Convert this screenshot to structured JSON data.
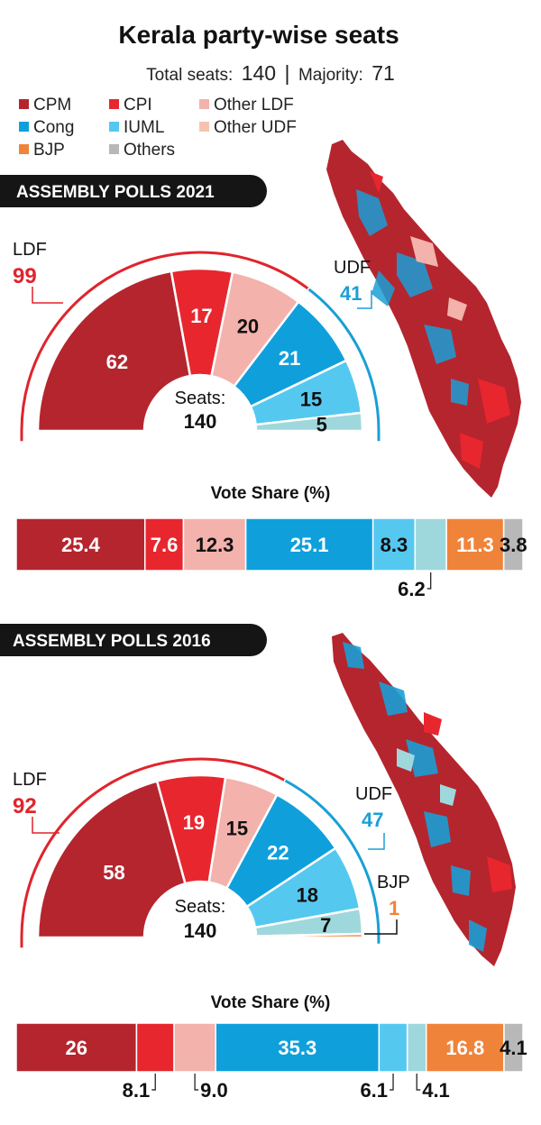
{
  "header": {
    "title": "Kerala party-wise seats",
    "total_label": "Total seats:",
    "total_value": "140",
    "separator": "|",
    "majority_label": "Majority:",
    "majority_value": "71"
  },
  "legend": [
    {
      "label": "CPM",
      "color": "#b5252e"
    },
    {
      "label": "CPI",
      "color": "#e8262e"
    },
    {
      "label": "Other LDF",
      "color": "#f3b2ac"
    },
    {
      "label": "Cong",
      "color": "#0fa0dc"
    },
    {
      "label": "IUML",
      "color": "#55c8f0"
    },
    {
      "label": "Other UDF",
      "color": "#f6c4ad"
    },
    {
      "label": "BJP",
      "color": "#f0833a"
    },
    {
      "label": "Others",
      "color": "#b8b8b8"
    }
  ],
  "colors": {
    "ldf": "#e0242c",
    "udf": "#1a9fd6",
    "bjp": "#f0833a",
    "badge_bg": "#151515",
    "badge_text": "#ffffff",
    "seat_other_udf": "#9fd8dc"
  },
  "chart_data": [
    {
      "type": "pie",
      "badge": "ASSEMBLY POLLS 2021",
      "center_label": "Seats:",
      "center_value": "140",
      "groups": [
        {
          "name": "LDF",
          "value": "99"
        },
        {
          "name": "UDF",
          "value": "41"
        }
      ],
      "slices": [
        {
          "party": "CPM",
          "value": 62,
          "color": "#b5252e"
        },
        {
          "party": "CPI",
          "value": 17,
          "color": "#e8262e"
        },
        {
          "party": "Other LDF",
          "value": 20,
          "color": "#f3b2ac"
        },
        {
          "party": "Cong",
          "value": 21,
          "color": "#0fa0dc"
        },
        {
          "party": "IUML",
          "value": 15,
          "color": "#55c8f0"
        },
        {
          "party": "Other UDF",
          "value": 5,
          "color": "#9fd8dc"
        }
      ],
      "vote_share": {
        "title": "Vote Share (%)",
        "segments": [
          {
            "party": "CPM",
            "value": 25.4,
            "label": "25.4",
            "color": "#b5252e"
          },
          {
            "party": "CPI",
            "value": 7.6,
            "label": "7.6",
            "color": "#e8262e"
          },
          {
            "party": "Other LDF",
            "value": 12.3,
            "label": "12.3",
            "color": "#f3b2ac"
          },
          {
            "party": "Cong",
            "value": 25.1,
            "label": "25.1",
            "color": "#0fa0dc"
          },
          {
            "party": "IUML",
            "value": 8.3,
            "label": "8.3",
            "color": "#55c8f0"
          },
          {
            "party": "Other UDF",
            "value": 6.2,
            "label": "6.2",
            "color": "#9fd8dc"
          },
          {
            "party": "BJP",
            "value": 11.3,
            "label": "11.3",
            "color": "#f0833a"
          },
          {
            "party": "Others",
            "value": 3.8,
            "label": "3.8",
            "color": "#b8b8b8"
          }
        ]
      }
    },
    {
      "type": "pie",
      "badge": "ASSEMBLY POLLS 2016",
      "center_label": "Seats:",
      "center_value": "140",
      "groups": [
        {
          "name": "LDF",
          "value": "92"
        },
        {
          "name": "UDF",
          "value": "47"
        },
        {
          "name": "BJP",
          "value": "1"
        }
      ],
      "slices": [
        {
          "party": "CPM",
          "value": 58,
          "color": "#b5252e"
        },
        {
          "party": "CPI",
          "value": 19,
          "color": "#e8262e"
        },
        {
          "party": "Other LDF",
          "value": 15,
          "color": "#f3b2ac"
        },
        {
          "party": "Cong",
          "value": 22,
          "color": "#0fa0dc"
        },
        {
          "party": "IUML",
          "value": 18,
          "color": "#55c8f0"
        },
        {
          "party": "Other UDF",
          "value": 7,
          "color": "#9fd8dc"
        },
        {
          "party": "BJP",
          "value": 1,
          "color": "#f0833a"
        }
      ],
      "vote_share": {
        "title": "Vote Share (%)",
        "segments": [
          {
            "party": "CPM",
            "value": 26,
            "label": "26",
            "color": "#b5252e"
          },
          {
            "party": "CPI",
            "value": 8.1,
            "label": "8.1",
            "color": "#e8262e"
          },
          {
            "party": "Other LDF",
            "value": 9.0,
            "label": "9.0",
            "color": "#f3b2ac"
          },
          {
            "party": "Cong",
            "value": 35.3,
            "label": "35.3",
            "color": "#0fa0dc"
          },
          {
            "party": "IUML",
            "value": 6.1,
            "label": "6.1",
            "color": "#55c8f0"
          },
          {
            "party": "Other UDF",
            "value": 4.1,
            "label": "4.1",
            "color": "#9fd8dc"
          },
          {
            "party": "BJP",
            "value": 16.8,
            "label": "16.8",
            "color": "#f0833a"
          },
          {
            "party": "Others",
            "value": 4.1,
            "label": "4.1",
            "color": "#b8b8b8"
          }
        ]
      }
    }
  ]
}
